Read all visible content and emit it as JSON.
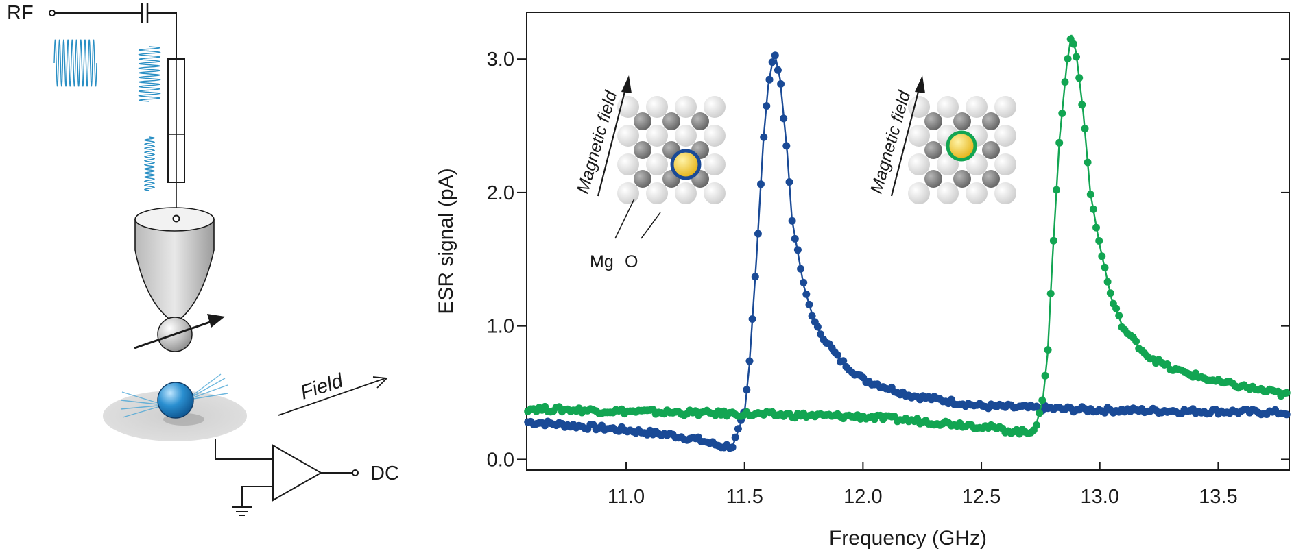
{
  "schematic": {
    "rf_label": "RF",
    "dc_label": "DC",
    "field_label": "Field"
  },
  "insets": {
    "magnetic_field_label": "Magnetic field",
    "mg_label": "Mg",
    "o_label": "O"
  },
  "colors": {
    "blue_series": "#1a4a96",
    "green_series": "#12a552",
    "waveform": "#2a8fc4",
    "gold_atom": "#f0c020"
  },
  "chart_data": {
    "type": "line",
    "xlabel": "Frequency (GHz)",
    "ylabel": "ESR signal (pA)",
    "xlim": [
      10.58,
      13.8
    ],
    "ylim": [
      -0.08,
      3.35
    ],
    "x_ticks": [
      "11.0",
      "11.5",
      "12.0",
      "12.5",
      "13.0",
      "13.5"
    ],
    "y_ticks": [
      "0.0",
      "1.0",
      "2.0",
      "3.0"
    ],
    "grid": false,
    "series": [
      {
        "color": "#1a4a96",
        "peak_frequency": 11.63,
        "peak_value": 3.02,
        "x": [
          10.6,
          10.8,
          11.0,
          11.2,
          11.3,
          11.4,
          11.45,
          11.5,
          11.52,
          11.55,
          11.58,
          11.6,
          11.62,
          11.63,
          11.65,
          11.68,
          11.7,
          11.75,
          11.8,
          11.9,
          12.0,
          12.2,
          12.5,
          12.8,
          13.0,
          13.5,
          13.8
        ],
        "values": [
          0.28,
          0.25,
          0.22,
          0.18,
          0.15,
          0.1,
          0.1,
          0.35,
          0.7,
          1.5,
          2.4,
          2.8,
          3.0,
          3.02,
          2.85,
          2.3,
          1.8,
          1.3,
          1.0,
          0.75,
          0.6,
          0.48,
          0.4,
          0.38,
          0.37,
          0.36,
          0.35
        ]
      },
      {
        "color": "#12a552",
        "peak_frequency": 12.88,
        "peak_value": 3.18,
        "x": [
          10.6,
          11.0,
          11.5,
          12.0,
          12.3,
          12.5,
          12.6,
          12.7,
          12.73,
          12.76,
          12.78,
          12.8,
          12.83,
          12.86,
          12.88,
          12.9,
          12.93,
          12.96,
          13.0,
          13.05,
          13.1,
          13.2,
          13.3,
          13.5,
          13.8
        ],
        "values": [
          0.38,
          0.36,
          0.34,
          0.32,
          0.28,
          0.25,
          0.22,
          0.2,
          0.25,
          0.45,
          0.8,
          1.5,
          2.4,
          2.95,
          3.18,
          3.05,
          2.6,
          2.0,
          1.6,
          1.2,
          0.98,
          0.78,
          0.68,
          0.58,
          0.48
        ]
      }
    ]
  }
}
